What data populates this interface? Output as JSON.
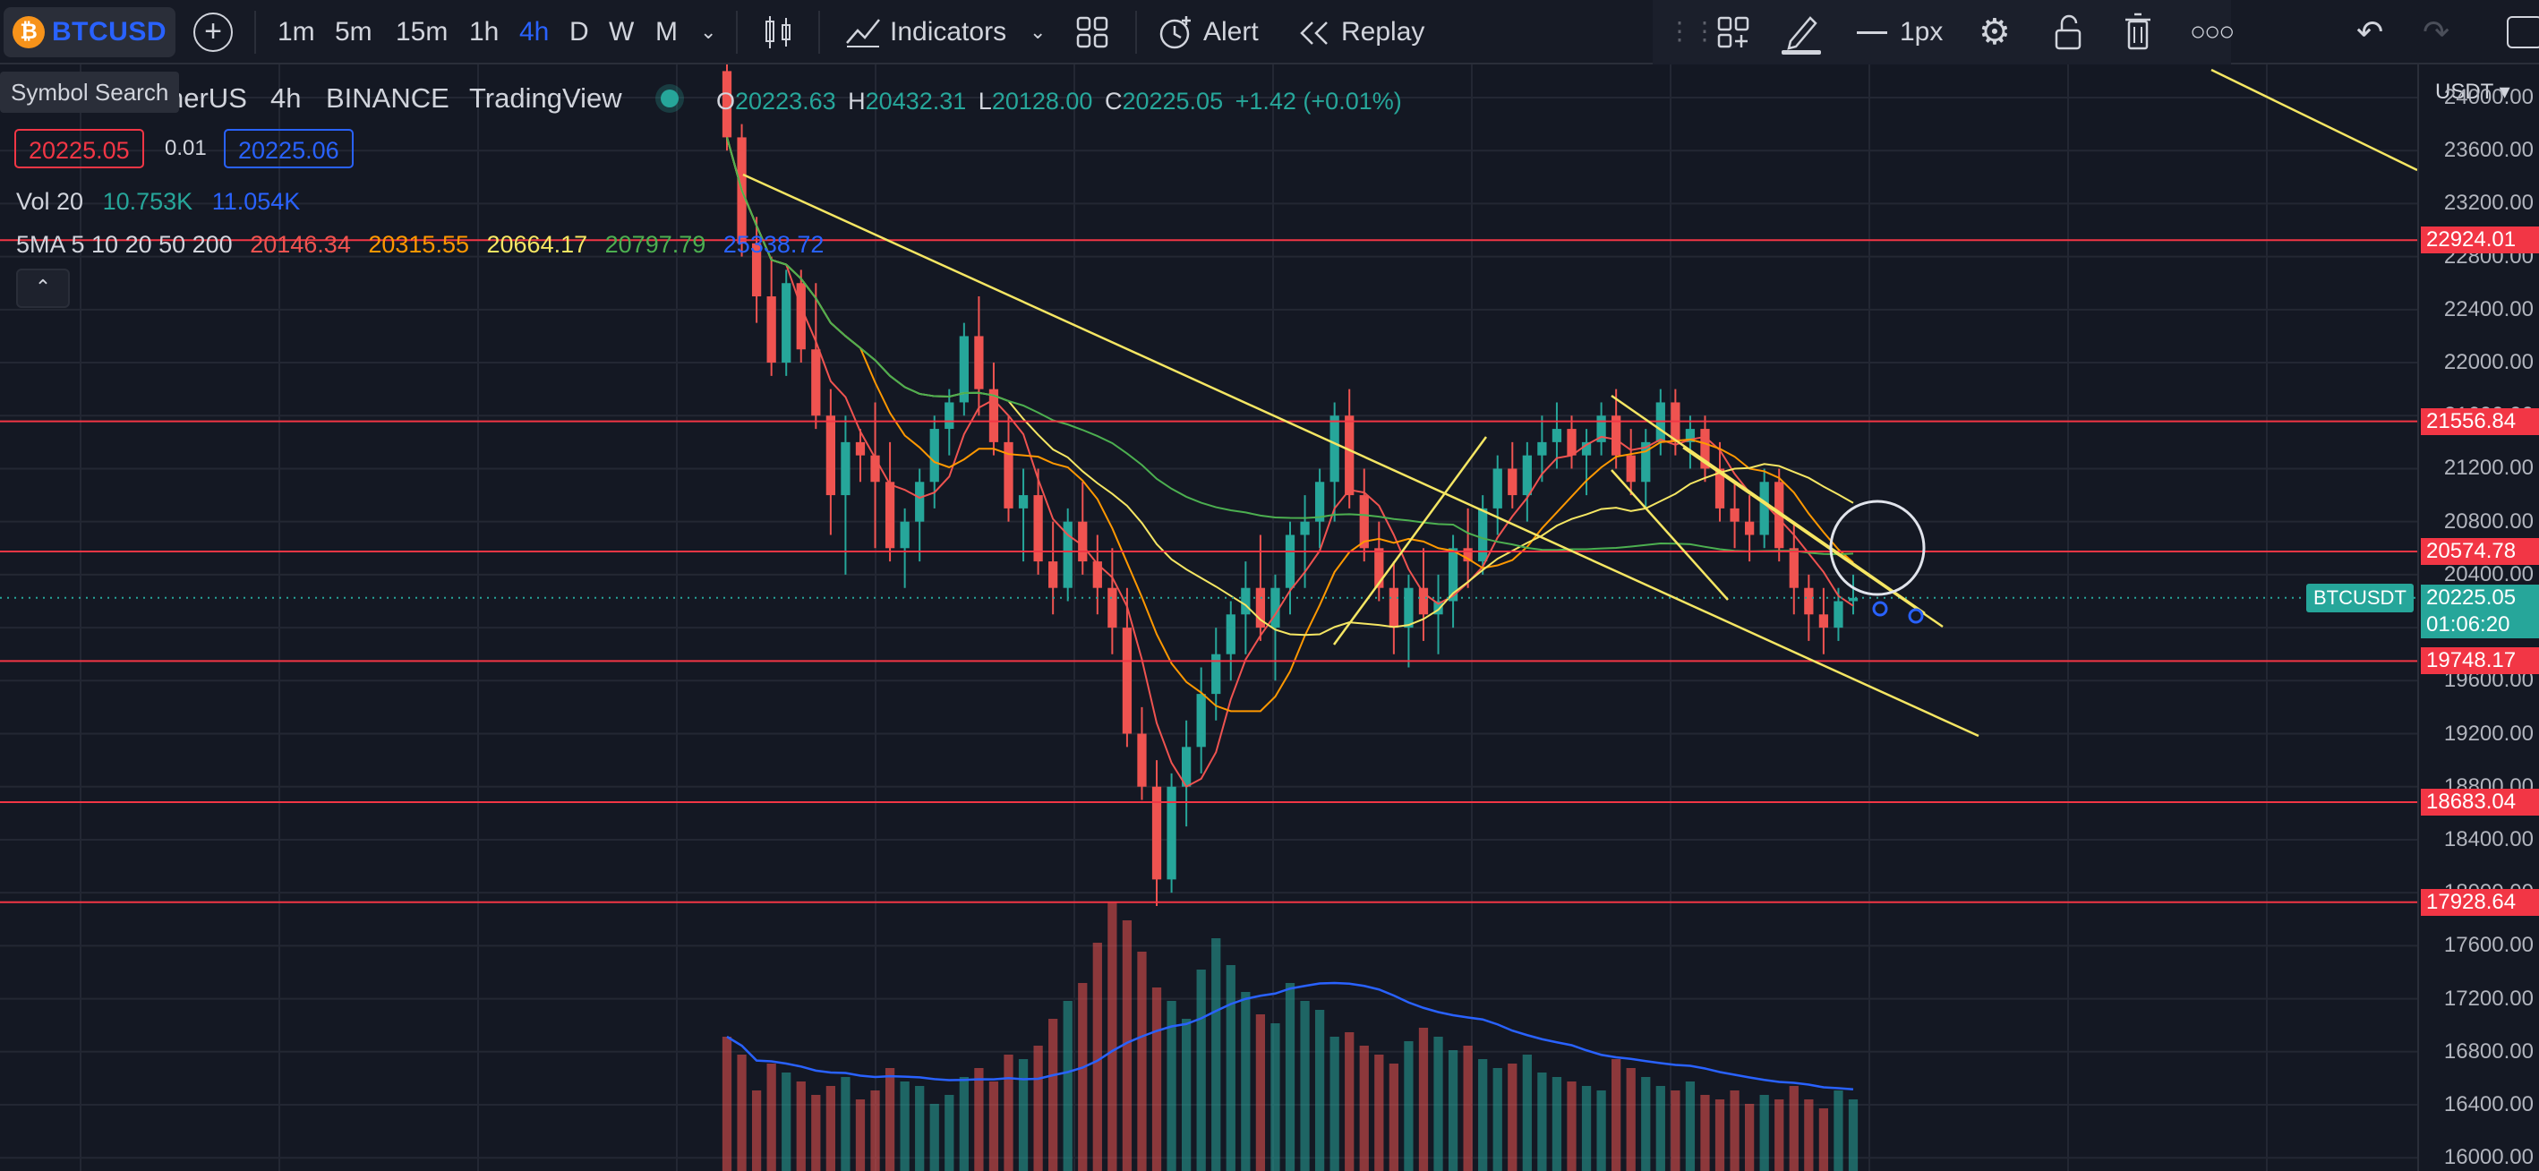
{
  "toolbar": {
    "symbol": "BTCUSD",
    "timeframes": [
      "1m",
      "5m",
      "15m",
      "1h",
      "4h",
      "D",
      "W",
      "M"
    ],
    "active_timeframe": "4h",
    "indicators_label": "Indicators",
    "alert_label": "Alert",
    "replay_label": "Replay",
    "line_width_label": "1px"
  },
  "tooltip": {
    "text": "Symbol Search"
  },
  "legend": {
    "title_suffix": "nerUS",
    "interval": "4h",
    "exchange": "BINANCE",
    "source": "TradingView",
    "ohlc": {
      "O": "20223.63",
      "H": "20432.31",
      "L": "20128.00",
      "C": "20225.05",
      "change": "+1.42 (+0.01%)"
    },
    "bid": "20225.05",
    "spread": "0.01",
    "ask": "20225.06",
    "volume_label": "Vol 20",
    "volume_values": [
      "10.753K",
      "11.054K"
    ],
    "ma_label": "5MA 5 10 20 50 200",
    "ma_values": [
      "20146.34",
      "20315.55",
      "20664.17",
      "20797.79",
      "25338.72"
    ]
  },
  "price_axis": {
    "currency": "USDT",
    "ticks": [
      "24000.00",
      "23600.00",
      "23200.00",
      "22800.00",
      "22400.00",
      "22000.00",
      "21600.00",
      "21200.00",
      "20800.00",
      "20400.00",
      "20000.00",
      "19600.00",
      "19200.00",
      "18800.00",
      "18400.00",
      "18000.00",
      "17600.00",
      "17200.00",
      "16800.00",
      "16400.00",
      "16000.00"
    ],
    "levels": [
      "22924.01",
      "21556.84",
      "20574.78",
      "19748.17",
      "18683.04",
      "17928.64"
    ],
    "last_price": "20225.05",
    "countdown": "01:06:20",
    "symbol_tag": "BTCUSDT"
  },
  "colors": {
    "background": "#141823",
    "up": "#26a69a",
    "down": "#ef5350",
    "level_line": "#f23645",
    "accent": "#2962ff",
    "trendline": "#f5e663"
  },
  "chart_data": {
    "type": "candlestick",
    "xlabel": "",
    "ylabel": "",
    "ylim": [
      15900,
      24250
    ],
    "candles": [
      [
        24200,
        24400,
        23600,
        23700
      ],
      [
        23700,
        23800,
        22800,
        22900
      ],
      [
        22900,
        23100,
        22300,
        22500
      ],
      [
        22500,
        22800,
        21900,
        22000
      ],
      [
        22000,
        22700,
        21900,
        22600
      ],
      [
        22600,
        22700,
        22000,
        22100
      ],
      [
        22100,
        22600,
        21500,
        21600
      ],
      [
        21600,
        21800,
        20700,
        21000
      ],
      [
        21000,
        21600,
        20400,
        21400
      ],
      [
        21400,
        21500,
        21100,
        21300
      ],
      [
        21300,
        21700,
        20600,
        21100
      ],
      [
        21100,
        21400,
        20500,
        20600
      ],
      [
        20600,
        20900,
        20300,
        20800
      ],
      [
        20800,
        21200,
        20500,
        21100
      ],
      [
        21100,
        21600,
        20900,
        21500
      ],
      [
        21500,
        21800,
        21300,
        21700
      ],
      [
        21700,
        22300,
        21600,
        22200
      ],
      [
        22200,
        22500,
        21600,
        21800
      ],
      [
        21800,
        22000,
        21300,
        21400
      ],
      [
        21400,
        21600,
        20800,
        20900
      ],
      [
        20900,
        21200,
        20500,
        21000
      ],
      [
        21000,
        21200,
        20400,
        20500
      ],
      [
        20500,
        20800,
        20100,
        20300
      ],
      [
        20300,
        20900,
        20200,
        20800
      ],
      [
        20800,
        21100,
        20400,
        20500
      ],
      [
        20500,
        20700,
        20100,
        20300
      ],
      [
        20300,
        20600,
        19800,
        20000
      ],
      [
        20000,
        20300,
        19100,
        19200
      ],
      [
        19200,
        19400,
        18700,
        18800
      ],
      [
        18800,
        19000,
        17900,
        18100
      ],
      [
        18100,
        18900,
        18000,
        18800
      ],
      [
        18800,
        19300,
        18500,
        19100
      ],
      [
        19100,
        19700,
        18900,
        19500
      ],
      [
        19500,
        20000,
        19300,
        19800
      ],
      [
        19800,
        20200,
        19600,
        20100
      ],
      [
        20100,
        20500,
        19800,
        20300
      ],
      [
        20300,
        20700,
        19900,
        20000
      ],
      [
        20000,
        20400,
        19600,
        20300
      ],
      [
        20300,
        20800,
        20100,
        20700
      ],
      [
        20700,
        21000,
        20300,
        20800
      ],
      [
        20800,
        21200,
        20600,
        21100
      ],
      [
        21100,
        21700,
        20800,
        21600
      ],
      [
        21600,
        21800,
        20900,
        21000
      ],
      [
        21000,
        21200,
        20500,
        20600
      ],
      [
        20600,
        20800,
        20200,
        20300
      ],
      [
        20300,
        20500,
        19800,
        20000
      ],
      [
        20000,
        20400,
        19700,
        20300
      ],
      [
        20300,
        20600,
        19900,
        20100
      ],
      [
        20100,
        20400,
        19800,
        20200
      ],
      [
        20200,
        20700,
        20000,
        20600
      ],
      [
        20600,
        20900,
        20300,
        20500
      ],
      [
        20500,
        21000,
        20400,
        20900
      ],
      [
        20900,
        21300,
        20700,
        21200
      ],
      [
        21200,
        21400,
        20900,
        21000
      ],
      [
        21000,
        21400,
        20800,
        21300
      ],
      [
        21300,
        21600,
        21100,
        21400
      ],
      [
        21400,
        21700,
        21200,
        21500
      ],
      [
        21500,
        21600,
        21200,
        21300
      ],
      [
        21300,
        21500,
        21000,
        21400
      ],
      [
        21400,
        21700,
        21300,
        21600
      ],
      [
        21600,
        21800,
        21200,
        21300
      ],
      [
        21300,
        21500,
        21000,
        21100
      ],
      [
        21100,
        21500,
        20900,
        21400
      ],
      [
        21400,
        21800,
        21300,
        21700
      ],
      [
        21700,
        21800,
        21300,
        21400
      ],
      [
        21400,
        21600,
        21200,
        21500
      ],
      [
        21500,
        21600,
        21100,
        21200
      ],
      [
        21200,
        21400,
        20800,
        20900
      ],
      [
        20900,
        21100,
        20600,
        20800
      ],
      [
        20800,
        21000,
        20500,
        20700
      ],
      [
        20700,
        21200,
        20600,
        21100
      ],
      [
        21100,
        21200,
        20500,
        20600
      ],
      [
        20600,
        20800,
        20100,
        20300
      ],
      [
        20300,
        20400,
        19900,
        20100
      ],
      [
        20100,
        20300,
        19800,
        20000
      ],
      [
        20000,
        20300,
        19900,
        20200
      ],
      [
        20200,
        20400,
        20100,
        20225
      ]
    ],
    "volume": [
      300,
      260,
      180,
      240,
      220,
      200,
      170,
      190,
      210,
      160,
      180,
      230,
      200,
      190,
      150,
      170,
      210,
      230,
      200,
      260,
      250,
      280,
      340,
      380,
      420,
      510,
      600,
      560,
      490,
      410,
      380,
      340,
      450,
      520,
      460,
      400,
      350,
      330,
      420,
      380,
      360,
      300,
      310,
      280,
      260,
      240,
      290,
      320,
      300,
      270,
      280,
      250,
      230,
      240,
      260,
      220,
      210,
      200,
      190,
      180,
      250,
      230,
      210,
      190,
      180,
      200,
      170,
      160,
      180,
      150,
      170,
      160,
      190,
      160,
      140,
      180,
      160
    ]
  }
}
